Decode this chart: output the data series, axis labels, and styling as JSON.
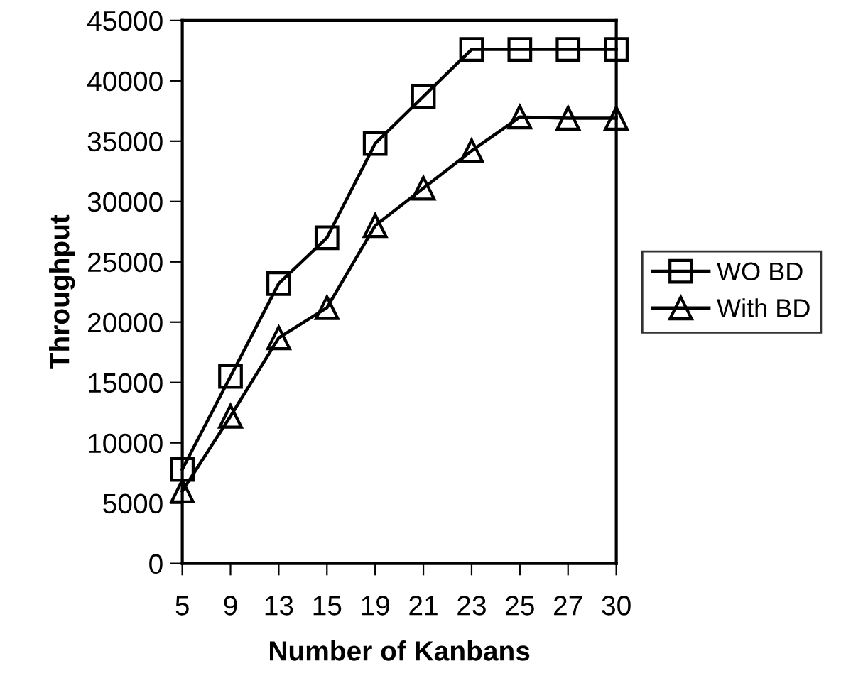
{
  "chart_data": {
    "type": "line",
    "xlabel": "Number of Kanbans",
    "ylabel": "Throughput",
    "categories": [
      "5",
      "9",
      "13",
      "15",
      "19",
      "21",
      "23",
      "25",
      "27",
      "30"
    ],
    "series": [
      {
        "name": "WO BD",
        "color": "#000000",
        "marker": "square",
        "values": [
          7800,
          15500,
          23200,
          27000,
          34800,
          38700,
          42600,
          42600,
          42600,
          42600
        ]
      },
      {
        "name": "With BD",
        "color": "#000000",
        "marker": "triangle",
        "values": [
          6000,
          12200,
          18700,
          21200,
          28000,
          31100,
          34200,
          37000,
          36900,
          36900
        ]
      }
    ],
    "ylim": [
      0,
      45000
    ],
    "yticks": [
      0,
      5000,
      10000,
      15000,
      20000,
      25000,
      30000,
      35000,
      40000,
      45000
    ],
    "grid": false,
    "legend": "right",
    "line_style": "solid"
  }
}
